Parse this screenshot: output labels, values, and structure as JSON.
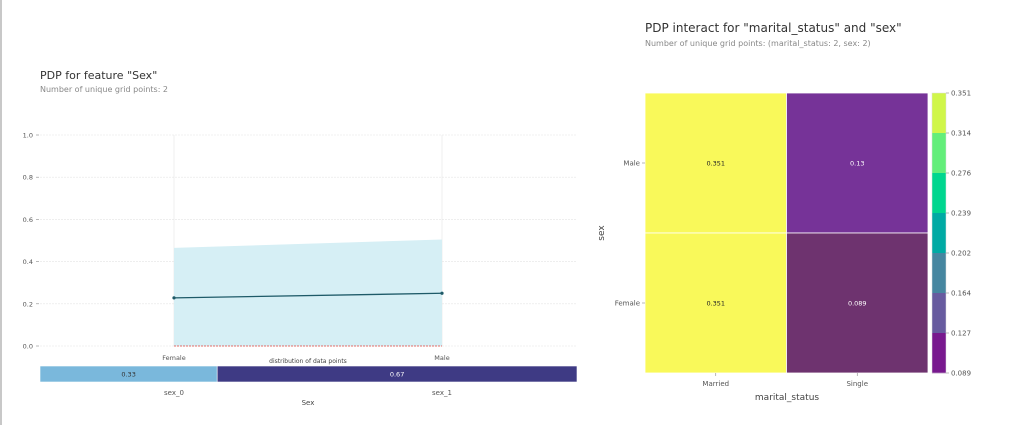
{
  "chart_data": [
    {
      "type": "line",
      "title": "PDP for feature \"Sex\"",
      "subtitle": "Number of unique grid points: 2",
      "categories": [
        "Female",
        "Male"
      ],
      "values": [
        0.228,
        0.25
      ],
      "band_upper": [
        0.465,
        0.505
      ],
      "band_lower": [
        0.0,
        0.0
      ],
      "baseline": 0.0,
      "ylim": [
        0,
        1.0
      ],
      "yticks": [
        "0.0",
        "0.2",
        "0.4",
        "0.6",
        "0.8",
        "1.0"
      ],
      "xlabel": "Sex",
      "distribution": {
        "label": "distribution of data points",
        "bins": [
          {
            "name": "sex_0",
            "value": 0.33,
            "label": "0.33",
            "color": "#7ab8dc"
          },
          {
            "name": "sex_1",
            "value": 0.67,
            "label": "0.67",
            "color": "#3e3a84"
          }
        ]
      },
      "colors": {
        "line": "#1e5a68",
        "band": "#d6eff5",
        "baseline": "#e0403a"
      }
    },
    {
      "type": "heatmap",
      "title": "PDP interact for \"marital_status\" and \"sex\"",
      "subtitle": "Number of unique grid points: (marital_status: 2, sex: 2)",
      "xlabel": "marital_status",
      "ylabel": "sex",
      "x_categories": [
        "Married",
        "Single"
      ],
      "y_categories": [
        "Male",
        "Female"
      ],
      "values": [
        [
          0.351,
          0.13
        ],
        [
          0.351,
          0.089
        ]
      ],
      "value_labels": [
        [
          "0.351",
          "0.13"
        ],
        [
          "0.351",
          "0.089"
        ]
      ],
      "cell_colors": [
        [
          "#f9f95a",
          "#763398"
        ],
        [
          "#f9f95a",
          "#6e336f"
        ]
      ],
      "colorbar": {
        "ticks": [
          "0.351",
          "0.314",
          "0.276",
          "0.239",
          "0.202",
          "0.164",
          "0.127",
          "0.089"
        ],
        "colors": [
          "#d0f64a",
          "#63ee7a",
          "#00d68f",
          "#00aaa4",
          "#4686a0",
          "#675b9f",
          "#78198e"
        ]
      }
    }
  ]
}
